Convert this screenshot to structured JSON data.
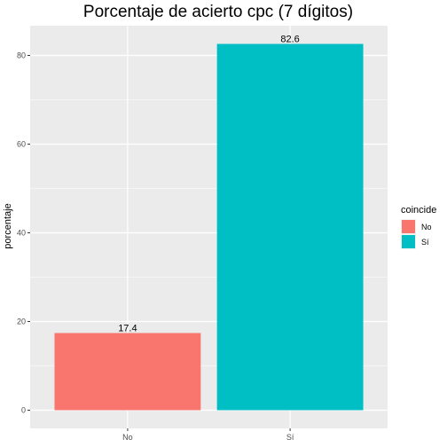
{
  "chart_data": {
    "type": "bar",
    "title": "Porcentaje de acierto cpc (7 dígitos)",
    "xlabel": "",
    "ylabel": "porcentaje",
    "categories": [
      "No",
      "Sí"
    ],
    "values": [
      17.4,
      82.6
    ],
    "data_labels": [
      "17.4",
      "82.6"
    ],
    "ylim": [
      -4.1,
      86.7
    ],
    "yticks": [
      0,
      20,
      40,
      60,
      80
    ],
    "ytick_labels": [
      "0",
      "20",
      "40",
      "60",
      "80"
    ],
    "grid": true,
    "legend": {
      "title": "coincide",
      "placement": "right",
      "entries": [
        {
          "label": "No",
          "color": "#F8766D"
        },
        {
          "label": "Sí",
          "color": "#00BFC4"
        }
      ]
    },
    "colors": [
      "#F8766D",
      "#00BFC4"
    ],
    "panel_background": "#EBEBEB",
    "grid_color": "#FFFFFF"
  }
}
